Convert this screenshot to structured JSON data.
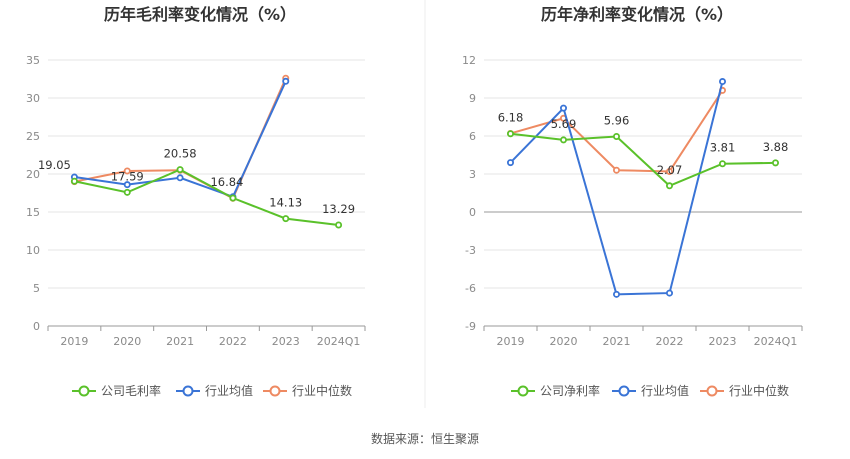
{
  "footer": {
    "source": "数据来源：恒生聚源"
  },
  "colors": {
    "company": "#5ac12a",
    "industry_avg": "#3a74d6",
    "industry_median": "#ee8a62"
  },
  "chart_data": [
    {
      "type": "line",
      "title": "历年毛利率变化情况（%）",
      "categories": [
        "2019",
        "2020",
        "2021",
        "2022",
        "2023",
        "2024Q1"
      ],
      "ylim": [
        0,
        35
      ],
      "yticks": [
        0,
        5,
        10,
        15,
        20,
        25,
        30,
        35
      ],
      "grid": true,
      "legend": "bottom",
      "series": [
        {
          "name": "公司毛利率",
          "key": "company",
          "values": [
            19.05,
            17.59,
            20.58,
            16.84,
            14.13,
            13.29
          ],
          "labels": [
            "19.05",
            "17.59",
            "20.58",
            "16.84",
            "14.13",
            "13.29"
          ]
        },
        {
          "name": "行业均值",
          "key": "industry_avg",
          "values": [
            19.6,
            18.6,
            19.5,
            17.0,
            32.2,
            null
          ]
        },
        {
          "name": "行业中位数",
          "key": "industry_median",
          "values": [
            19.0,
            20.4,
            20.5,
            16.8,
            32.6,
            null
          ]
        }
      ]
    },
    {
      "type": "line",
      "title": "历年净利率变化情况（%）",
      "categories": [
        "2019",
        "2020",
        "2021",
        "2022",
        "2023",
        "2024Q1"
      ],
      "ylim": [
        -9,
        12
      ],
      "yticks": [
        -9,
        -6,
        -3,
        0,
        3,
        6,
        9,
        12
      ],
      "grid": true,
      "legend": "bottom",
      "series": [
        {
          "name": "公司净利率",
          "key": "company",
          "values": [
            6.18,
            5.69,
            5.96,
            2.07,
            3.81,
            3.88
          ],
          "labels": [
            "6.18",
            "5.69",
            "5.96",
            "2.07",
            "3.81",
            "3.88"
          ]
        },
        {
          "name": "行业均值",
          "key": "industry_avg",
          "values": [
            3.9,
            8.2,
            -6.5,
            -6.4,
            10.3,
            null
          ]
        },
        {
          "name": "行业中位数",
          "key": "industry_median",
          "values": [
            6.2,
            7.4,
            3.3,
            3.2,
            9.6,
            null
          ]
        }
      ]
    }
  ]
}
